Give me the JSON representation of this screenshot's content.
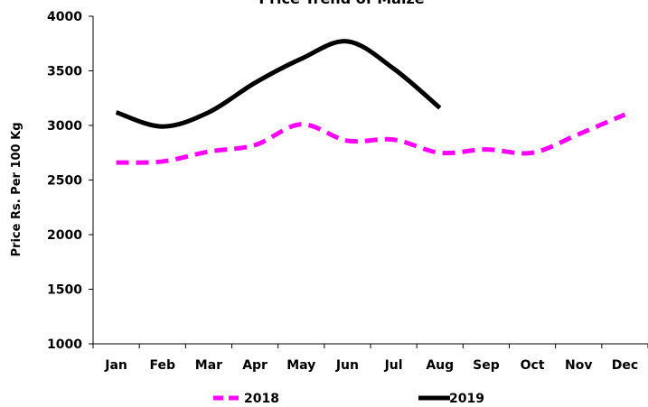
{
  "chart_data": {
    "type": "line",
    "title": "Price Trend of Maize",
    "xlabel": "",
    "ylabel": "Price Rs. Per 100 Kg",
    "categories": [
      "Jan",
      "Feb",
      "Mar",
      "Apr",
      "May",
      "Jun",
      "Jul",
      "Aug",
      "Sep",
      "Oct",
      "Nov",
      "Dec"
    ],
    "ylim": [
      1000,
      4000
    ],
    "yticks": [
      "1000",
      "1500",
      "2000",
      "2500",
      "3000",
      "3500",
      "4000"
    ],
    "grid": false,
    "legend_position": "bottom",
    "series": [
      {
        "name": "2018",
        "color": "#ff00ff",
        "style": "dashed",
        "values": [
          2660,
          2670,
          2760,
          2820,
          3010,
          2860,
          2870,
          2750,
          2780,
          2750,
          2920,
          3100
        ]
      },
      {
        "name": "2019",
        "color": "#000000",
        "style": "solid",
        "values": [
          3120,
          2990,
          3120,
          3390,
          3610,
          3770,
          3520,
          3160,
          null,
          null,
          null,
          null
        ]
      }
    ]
  }
}
